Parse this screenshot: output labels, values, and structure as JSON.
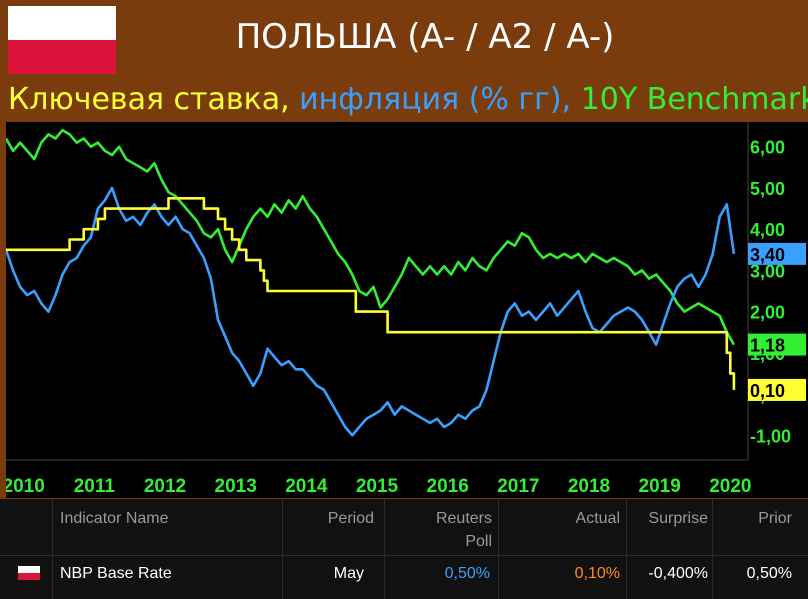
{
  "header": {
    "title": "ПОЛЬША (A- / A2 / A-)",
    "subtitle_parts": [
      {
        "text": "Ключевая ставка, ",
        "color": "#ffff33"
      },
      {
        "text": "инфляция (% гг), ",
        "color": "#3aa0ff"
      },
      {
        "text": "10Y Benchmark",
        "color": "#33ee33"
      }
    ],
    "flag_icon": "poland-flag-icon"
  },
  "chart_data": {
    "type": "line",
    "x_ticks": [
      "2010",
      "2011",
      "2012",
      "2013",
      "2014",
      "2015",
      "2016",
      "2017",
      "2018",
      "2019",
      "2020"
    ],
    "y_ticks": [
      "6,00",
      "5,00",
      "4,00",
      "3,00",
      "2,00",
      "1,00",
      "0,00",
      "-1,00"
    ],
    "xlim": [
      2009.8,
      2020.3
    ],
    "ylim": [
      -1.6,
      6.6
    ],
    "grid": false,
    "series": [
      {
        "color": "#33ee33",
        "last_label": "1,18",
        "values": [
          [
            2009.8,
            6.2
          ],
          [
            2009.9,
            5.9
          ],
          [
            2010.0,
            6.1
          ],
          [
            2010.1,
            5.9
          ],
          [
            2010.2,
            5.7
          ],
          [
            2010.3,
            6.1
          ],
          [
            2010.4,
            6.3
          ],
          [
            2010.5,
            6.2
          ],
          [
            2010.6,
            6.4
          ],
          [
            2010.7,
            6.3
          ],
          [
            2010.8,
            6.1
          ],
          [
            2010.9,
            6.2
          ],
          [
            2011.0,
            6.0
          ],
          [
            2011.1,
            6.1
          ],
          [
            2011.2,
            5.9
          ],
          [
            2011.3,
            5.8
          ],
          [
            2011.4,
            6.0
          ],
          [
            2011.5,
            5.7
          ],
          [
            2011.6,
            5.6
          ],
          [
            2011.7,
            5.5
          ],
          [
            2011.8,
            5.4
          ],
          [
            2011.9,
            5.6
          ],
          [
            2012.0,
            5.2
          ],
          [
            2012.1,
            4.9
          ],
          [
            2012.2,
            4.8
          ],
          [
            2012.3,
            4.6
          ],
          [
            2012.5,
            4.2
          ],
          [
            2012.6,
            3.9
          ],
          [
            2012.7,
            3.8
          ],
          [
            2012.8,
            4.0
          ],
          [
            2012.9,
            3.5
          ],
          [
            2013.0,
            3.2
          ],
          [
            2013.1,
            3.6
          ],
          [
            2013.2,
            4.0
          ],
          [
            2013.3,
            4.3
          ],
          [
            2013.4,
            4.5
          ],
          [
            2013.5,
            4.3
          ],
          [
            2013.6,
            4.6
          ],
          [
            2013.7,
            4.4
          ],
          [
            2013.8,
            4.7
          ],
          [
            2013.9,
            4.5
          ],
          [
            2014.0,
            4.8
          ],
          [
            2014.1,
            4.5
          ],
          [
            2014.2,
            4.3
          ],
          [
            2014.3,
            4.0
          ],
          [
            2014.4,
            3.7
          ],
          [
            2014.5,
            3.4
          ],
          [
            2014.6,
            3.2
          ],
          [
            2014.7,
            2.9
          ],
          [
            2014.8,
            2.5
          ],
          [
            2014.9,
            2.4
          ],
          [
            2015.0,
            2.6
          ],
          [
            2015.1,
            2.1
          ],
          [
            2015.2,
            2.3
          ],
          [
            2015.3,
            2.6
          ],
          [
            2015.4,
            2.9
          ],
          [
            2015.5,
            3.3
          ],
          [
            2015.6,
            3.1
          ],
          [
            2015.7,
            2.9
          ],
          [
            2015.8,
            3.1
          ],
          [
            2015.9,
            2.9
          ],
          [
            2016.0,
            3.1
          ],
          [
            2016.1,
            2.9
          ],
          [
            2016.2,
            3.2
          ],
          [
            2016.3,
            3.0
          ],
          [
            2016.4,
            3.3
          ],
          [
            2016.5,
            3.1
          ],
          [
            2016.6,
            3.0
          ],
          [
            2016.7,
            3.3
          ],
          [
            2016.8,
            3.5
          ],
          [
            2016.9,
            3.7
          ],
          [
            2017.0,
            3.6
          ],
          [
            2017.1,
            3.9
          ],
          [
            2017.2,
            3.8
          ],
          [
            2017.3,
            3.5
          ],
          [
            2017.4,
            3.3
          ],
          [
            2017.5,
            3.4
          ],
          [
            2017.6,
            3.3
          ],
          [
            2017.7,
            3.4
          ],
          [
            2017.8,
            3.3
          ],
          [
            2017.9,
            3.4
          ],
          [
            2018.0,
            3.2
          ],
          [
            2018.1,
            3.4
          ],
          [
            2018.2,
            3.3
          ],
          [
            2018.3,
            3.2
          ],
          [
            2018.4,
            3.3
          ],
          [
            2018.5,
            3.2
          ],
          [
            2018.6,
            3.1
          ],
          [
            2018.7,
            2.9
          ],
          [
            2018.8,
            3.0
          ],
          [
            2018.9,
            2.8
          ],
          [
            2019.0,
            2.9
          ],
          [
            2019.1,
            2.7
          ],
          [
            2019.2,
            2.5
          ],
          [
            2019.3,
            2.2
          ],
          [
            2019.4,
            2.0
          ],
          [
            2019.5,
            2.1
          ],
          [
            2019.6,
            2.2
          ],
          [
            2019.7,
            2.1
          ],
          [
            2019.8,
            2.0
          ],
          [
            2019.9,
            1.9
          ],
          [
            2020.0,
            1.5
          ],
          [
            2020.1,
            1.2
          ]
        ]
      },
      {
        "color": "#3aa0ff",
        "last_label": "3,40",
        "values": [
          [
            2009.8,
            3.5
          ],
          [
            2009.9,
            3.0
          ],
          [
            2010.0,
            2.6
          ],
          [
            2010.1,
            2.4
          ],
          [
            2010.2,
            2.5
          ],
          [
            2010.3,
            2.2
          ],
          [
            2010.4,
            2.0
          ],
          [
            2010.5,
            2.4
          ],
          [
            2010.6,
            2.9
          ],
          [
            2010.7,
            3.2
          ],
          [
            2010.8,
            3.3
          ],
          [
            2010.9,
            3.6
          ],
          [
            2011.0,
            3.8
          ],
          [
            2011.1,
            4.5
          ],
          [
            2011.2,
            4.7
          ],
          [
            2011.3,
            5.0
          ],
          [
            2011.4,
            4.5
          ],
          [
            2011.5,
            4.2
          ],
          [
            2011.6,
            4.3
          ],
          [
            2011.7,
            4.1
          ],
          [
            2011.8,
            4.4
          ],
          [
            2011.9,
            4.6
          ],
          [
            2012.0,
            4.3
          ],
          [
            2012.1,
            4.1
          ],
          [
            2012.2,
            4.3
          ],
          [
            2012.3,
            4.0
          ],
          [
            2012.4,
            3.9
          ],
          [
            2012.5,
            3.6
          ],
          [
            2012.6,
            3.3
          ],
          [
            2012.7,
            2.8
          ],
          [
            2012.8,
            1.8
          ],
          [
            2012.9,
            1.4
          ],
          [
            2013.0,
            1.0
          ],
          [
            2013.1,
            0.8
          ],
          [
            2013.2,
            0.5
          ],
          [
            2013.3,
            0.2
          ],
          [
            2013.4,
            0.5
          ],
          [
            2013.5,
            1.1
          ],
          [
            2013.6,
            0.9
          ],
          [
            2013.7,
            0.7
          ],
          [
            2013.8,
            0.8
          ],
          [
            2013.9,
            0.6
          ],
          [
            2014.0,
            0.6
          ],
          [
            2014.1,
            0.4
          ],
          [
            2014.2,
            0.2
          ],
          [
            2014.3,
            0.1
          ],
          [
            2014.4,
            -0.2
          ],
          [
            2014.5,
            -0.5
          ],
          [
            2014.6,
            -0.8
          ],
          [
            2014.7,
            -1.0
          ],
          [
            2014.8,
            -0.8
          ],
          [
            2014.9,
            -0.6
          ],
          [
            2015.0,
            -0.5
          ],
          [
            2015.1,
            -0.4
          ],
          [
            2015.2,
            -0.2
          ],
          [
            2015.3,
            -0.5
          ],
          [
            2015.4,
            -0.3
          ],
          [
            2015.5,
            -0.4
          ],
          [
            2015.6,
            -0.5
          ],
          [
            2015.7,
            -0.6
          ],
          [
            2015.8,
            -0.7
          ],
          [
            2015.9,
            -0.6
          ],
          [
            2016.0,
            -0.8
          ],
          [
            2016.1,
            -0.7
          ],
          [
            2016.2,
            -0.5
          ],
          [
            2016.3,
            -0.6
          ],
          [
            2016.4,
            -0.4
          ],
          [
            2016.5,
            -0.3
          ],
          [
            2016.6,
            0.1
          ],
          [
            2016.7,
            0.8
          ],
          [
            2016.8,
            1.5
          ],
          [
            2016.9,
            2.0
          ],
          [
            2017.0,
            2.2
          ],
          [
            2017.1,
            1.9
          ],
          [
            2017.2,
            2.0
          ],
          [
            2017.3,
            1.8
          ],
          [
            2017.4,
            2.0
          ],
          [
            2017.5,
            2.2
          ],
          [
            2017.6,
            1.9
          ],
          [
            2017.7,
            2.1
          ],
          [
            2017.8,
            2.3
          ],
          [
            2017.9,
            2.5
          ],
          [
            2018.0,
            2.0
          ],
          [
            2018.1,
            1.6
          ],
          [
            2018.2,
            1.5
          ],
          [
            2018.3,
            1.7
          ],
          [
            2018.4,
            1.9
          ],
          [
            2018.5,
            2.0
          ],
          [
            2018.6,
            2.1
          ],
          [
            2018.7,
            2.0
          ],
          [
            2018.8,
            1.8
          ],
          [
            2018.9,
            1.5
          ],
          [
            2019.0,
            1.2
          ],
          [
            2019.1,
            1.7
          ],
          [
            2019.2,
            2.2
          ],
          [
            2019.3,
            2.6
          ],
          [
            2019.4,
            2.8
          ],
          [
            2019.5,
            2.9
          ],
          [
            2019.6,
            2.6
          ],
          [
            2019.7,
            2.9
          ],
          [
            2019.8,
            3.4
          ],
          [
            2019.9,
            4.3
          ],
          [
            2020.0,
            4.6
          ],
          [
            2020.1,
            3.4
          ]
        ]
      },
      {
        "color": "#ffff33",
        "last_label": "0,10",
        "values": [
          [
            2009.8,
            3.5
          ],
          [
            2010.7,
            3.5
          ],
          [
            2010.7,
            3.75
          ],
          [
            2010.9,
            3.75
          ],
          [
            2010.9,
            4.0
          ],
          [
            2011.1,
            4.0
          ],
          [
            2011.1,
            4.25
          ],
          [
            2011.2,
            4.25
          ],
          [
            2011.2,
            4.5
          ],
          [
            2012.1,
            4.5
          ],
          [
            2012.1,
            4.75
          ],
          [
            2012.6,
            4.75
          ],
          [
            2012.6,
            4.5
          ],
          [
            2012.8,
            4.5
          ],
          [
            2012.8,
            4.25
          ],
          [
            2012.9,
            4.25
          ],
          [
            2012.9,
            4.0
          ],
          [
            2013.0,
            4.0
          ],
          [
            2013.0,
            3.75
          ],
          [
            2013.1,
            3.75
          ],
          [
            2013.1,
            3.5
          ],
          [
            2013.2,
            3.5
          ],
          [
            2013.2,
            3.25
          ],
          [
            2013.4,
            3.25
          ],
          [
            2013.4,
            3.0
          ],
          [
            2013.45,
            3.0
          ],
          [
            2013.45,
            2.75
          ],
          [
            2013.5,
            2.75
          ],
          [
            2013.5,
            2.5
          ],
          [
            2014.75,
            2.5
          ],
          [
            2014.75,
            2.0
          ],
          [
            2015.2,
            2.0
          ],
          [
            2015.2,
            1.5
          ],
          [
            2020.0,
            1.5
          ],
          [
            2020.0,
            1.0
          ],
          [
            2020.05,
            1.0
          ],
          [
            2020.05,
            0.5
          ],
          [
            2020.1,
            0.5
          ],
          [
            2020.1,
            0.1
          ]
        ]
      }
    ]
  },
  "table": {
    "headers": {
      "indicator": "Indicator Name",
      "period": "Period",
      "poll_line1": "Reuters",
      "poll_line2": "Poll",
      "actual": "Actual",
      "surprise": "Surprise",
      "prior": "Prior"
    },
    "row": {
      "indicator": "NBP Base Rate",
      "period": "May",
      "poll": "0,50%",
      "actual": "0,10%",
      "surprise": "-0,400%",
      "prior": "0,50%"
    },
    "poll_color": "#3aa0ff",
    "actual_color": "#ff8c1a"
  }
}
